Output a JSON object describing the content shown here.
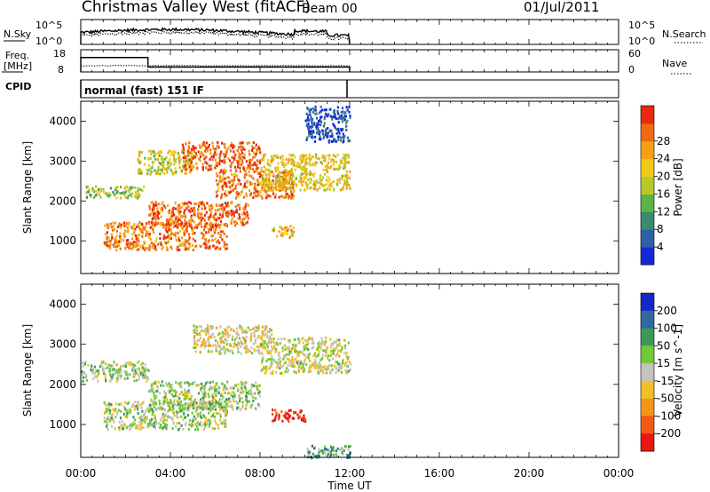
{
  "header": {
    "station": "Christmas Valley West (fitACF)",
    "beam": "Beam 00",
    "date": "01/Jul/2011"
  },
  "time_axis": {
    "label": "Time UT",
    "ticks": [
      "00:00",
      "04:00",
      "08:00",
      "12:00",
      "16:00",
      "20:00",
      "00:00"
    ],
    "data_end_hour": 12
  },
  "panels": {
    "nsky": {
      "left_label": "N.Sky",
      "left_ticks": [
        "10^5",
        "10^0"
      ],
      "right_ticks": [
        "10^5",
        "10^0"
      ],
      "right_label": "N.Search"
    },
    "freq": {
      "left_label": "Freq.",
      "left_unit": "[MHz]",
      "left_ticks": [
        "18",
        "8"
      ],
      "right_ticks": [
        "60",
        "0"
      ],
      "right_label": "Nave",
      "freq_steps": [
        {
          "from": 0,
          "to": 3,
          "mhz": 14.5
        },
        {
          "from": 3,
          "to": 12,
          "mhz": 10.2
        }
      ]
    },
    "cpid": {
      "label": "CPID",
      "value": "normal (fast) 151 IF"
    }
  },
  "chart_data": [
    {
      "type": "heatmap",
      "name": "power",
      "ylabel": "Slant Range [km]",
      "y_ticks": [
        "1000",
        "2000",
        "3000",
        "4000"
      ],
      "ylim": [
        180,
        4500
      ],
      "xlim": [
        0,
        24
      ],
      "colorbar": {
        "label": "Power [dB]",
        "ticks": [
          "4",
          "8",
          "12",
          "16",
          "20",
          "24",
          "28"
        ],
        "colors": [
          "#1428d8",
          "#2e5fa8",
          "#3c8a6e",
          "#5fb248",
          "#b8c828",
          "#f2c81a",
          "#f4a012",
          "#f06a10",
          "#e82810"
        ]
      },
      "features": [
        {
          "t0": 0.2,
          "t1": 2.8,
          "r0": 2100,
          "r1": 2400,
          "level": 0.45
        },
        {
          "t0": 2.5,
          "t1": 5.0,
          "r0": 2700,
          "r1": 3300,
          "level": 0.55
        },
        {
          "t0": 4.5,
          "t1": 8.0,
          "r0": 2800,
          "r1": 3500,
          "level": 0.85
        },
        {
          "t0": 6.0,
          "t1": 9.5,
          "r0": 2100,
          "r1": 2800,
          "level": 0.8
        },
        {
          "t0": 1.0,
          "t1": 6.5,
          "r0": 800,
          "r1": 1500,
          "level": 0.8
        },
        {
          "t0": 3.0,
          "t1": 7.5,
          "r0": 1400,
          "r1": 2000,
          "level": 0.85
        },
        {
          "t0": 8.0,
          "t1": 12.0,
          "r0": 2300,
          "r1": 3200,
          "level": 0.6
        },
        {
          "t0": 8.5,
          "t1": 9.5,
          "r0": 1100,
          "r1": 1400,
          "level": 0.65
        },
        {
          "t0": 10.0,
          "t1": 12.0,
          "r0": 3500,
          "r1": 4400,
          "level": 0.15
        }
      ]
    },
    {
      "type": "heatmap",
      "name": "velocity",
      "ylabel": "Slant Range [km]",
      "y_ticks": [
        "1000",
        "2000",
        "3000",
        "4000"
      ],
      "ylim": [
        180,
        4500
      ],
      "xlim": [
        0,
        24
      ],
      "colorbar": {
        "label": "Velocity [m s^-1]",
        "ticks": [
          "200",
          "100",
          "50",
          "15",
          "-15",
          "-50",
          "-100",
          "-200"
        ],
        "colors": [
          "#1428c8",
          "#2e6aa0",
          "#3c9a58",
          "#74c838",
          "#c4c4bc",
          "#f2c024",
          "#f49418",
          "#f05a14",
          "#e81810"
        ]
      },
      "features": [
        {
          "t0": 0.0,
          "t1": 3.0,
          "r0": 2100,
          "r1": 2600,
          "level": 0.45
        },
        {
          "t0": 1.0,
          "t1": 6.5,
          "r0": 900,
          "r1": 1600,
          "level": 0.45
        },
        {
          "t0": 3.0,
          "t1": 8.0,
          "r0": 1400,
          "r1": 2100,
          "level": 0.45
        },
        {
          "t0": 5.0,
          "t1": 8.5,
          "r0": 2800,
          "r1": 3500,
          "level": 0.55
        },
        {
          "t0": 8.0,
          "t1": 12.0,
          "r0": 2300,
          "r1": 3200,
          "level": 0.5
        },
        {
          "t0": 8.5,
          "t1": 10.0,
          "r0": 1100,
          "r1": 1400,
          "level": 0.95
        },
        {
          "t0": 10.0,
          "t1": 12.0,
          "r0": 200,
          "r1": 500,
          "level": 0.3
        }
      ]
    }
  ]
}
